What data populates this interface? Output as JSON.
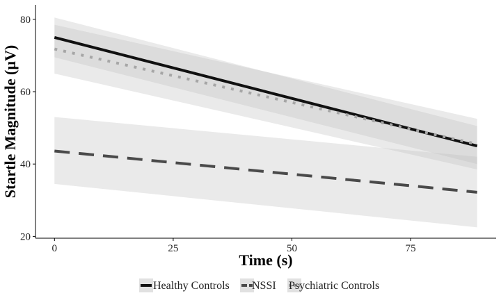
{
  "chart_data": {
    "type": "line",
    "title": "",
    "xlabel": "Time (s)",
    "ylabel": "Startle Magnitude (µV)",
    "xlim": [
      -4,
      93
    ],
    "ylim": [
      19.5,
      84
    ],
    "x_ticks": [
      0,
      25,
      50,
      75
    ],
    "x_tick_labels": [
      "0",
      "25",
      "50",
      "75"
    ],
    "y_ticks": [
      20,
      40,
      60,
      80
    ],
    "y_tick_labels": [
      "20",
      "40",
      "60",
      "80"
    ],
    "grid": false,
    "legend_position": "bottom",
    "series": [
      {
        "name": "Healthy Controls",
        "line_style": "solid",
        "color": "#111111",
        "x": [
          0,
          89
        ],
        "y": [
          75.0,
          45.0
        ],
        "ci_lower": [
          69.5,
          40.0
        ],
        "ci_upper": [
          80.5,
          50.5
        ]
      },
      {
        "name": "NSSI",
        "line_style": "dashed",
        "color": "#4a4a4a",
        "x": [
          0,
          89
        ],
        "y": [
          43.6,
          32.2
        ],
        "ci_lower": [
          34.5,
          22.5
        ],
        "ci_upper": [
          53.0,
          42.0
        ]
      },
      {
        "name": "Psychiatric Controls",
        "line_style": "dotted",
        "color": "#a6a6a6",
        "x": [
          0,
          89
        ],
        "y": [
          71.8,
          45.5
        ],
        "ci_lower": [
          65.0,
          38.5
        ],
        "ci_upper": [
          78.5,
          52.5
        ]
      }
    ],
    "band_color": "#bdbdbd"
  }
}
